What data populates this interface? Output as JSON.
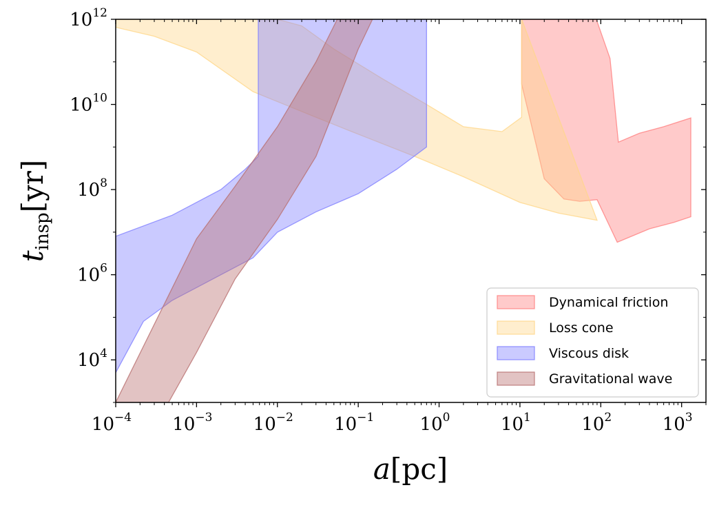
{
  "chart_data": {
    "type": "area",
    "title": "",
    "xlabel": {
      "var": "a",
      "unit": "pc"
    },
    "ylabel": {
      "var": "t",
      "sub": "insp",
      "unit": "yr"
    },
    "xscale": "log",
    "yscale": "log",
    "xlim": [
      0.0001,
      2000
    ],
    "ylim": [
      1000,
      1000000000000
    ],
    "x_ticks": [
      {
        "base": "10",
        "exp": "−4"
      },
      {
        "base": "10",
        "exp": "−3"
      },
      {
        "base": "10",
        "exp": "−2"
      },
      {
        "base": "10",
        "exp": "−1"
      },
      {
        "base": "10",
        "exp": "0"
      },
      {
        "base": "10",
        "exp": "1"
      },
      {
        "base": "10",
        "exp": "2"
      },
      {
        "base": "10",
        "exp": "3"
      }
    ],
    "y_ticks": [
      {
        "base": "10",
        "exp": "4"
      },
      {
        "base": "10",
        "exp": "6"
      },
      {
        "base": "10",
        "exp": "8"
      },
      {
        "base": "10",
        "exp": "10"
      },
      {
        "base": "10",
        "exp": "12"
      }
    ],
    "grid": false,
    "legend_position": "bottom-right",
    "series": [
      {
        "name": "Dynamical friction",
        "color": "#ff8080",
        "upper": [
          [
            10.5,
            1000000000000.0
          ],
          [
            88,
            1000000000000.0
          ],
          [
            130,
            120000000000.0
          ],
          [
            165,
            1300000000.0
          ],
          [
            300,
            2100000000.0
          ],
          [
            600,
            3000000000.0
          ],
          [
            1300,
            4800000000.0
          ]
        ],
        "lower": [
          [
            10.5,
            30000000000.0
          ],
          [
            20,
            180000000.0
          ],
          [
            35,
            60000000.0
          ],
          [
            55,
            53000000.0
          ],
          [
            90,
            58000000.0
          ],
          [
            160,
            5800000.0
          ],
          [
            400,
            12000000.0
          ],
          [
            800,
            17000000.0
          ],
          [
            1300,
            23000000.0
          ]
        ]
      },
      {
        "name": "Loss cone",
        "color": "#ffd78a",
        "upper": [
          [
            0.0001,
            1000000000000.0
          ],
          [
            0.0005,
            1000000000000.0
          ],
          [
            0.01,
            1000000000000.0
          ],
          [
            0.02,
            700000000000.0
          ],
          [
            0.05,
            200000000000.0
          ],
          [
            0.2,
            40000000000.0
          ],
          [
            0.7,
            10000000000.0
          ],
          [
            2,
            3000000000.0
          ],
          [
            6,
            2300000000.0
          ],
          [
            10.5,
            5000000000.0
          ],
          [
            10.5,
            1000000000000.0
          ]
        ],
        "lower": [
          [
            0.0001,
            650000000000.0
          ],
          [
            0.0003,
            400000000000.0
          ],
          [
            0.001,
            170000000000.0
          ],
          [
            0.005,
            20000000000.0
          ],
          [
            0.03,
            5000000000.0
          ],
          [
            0.1,
            2000000000.0
          ],
          [
            0.5,
            600000000.0
          ],
          [
            2,
            200000000.0
          ],
          [
            10,
            50000000.0
          ],
          [
            30,
            28000000.0
          ],
          [
            90,
            19000000.0
          ]
        ]
      },
      {
        "name": "Viscous disk",
        "color": "#8080ff",
        "upper": [
          [
            0.0001,
            8000000.0
          ],
          [
            0.0005,
            25000000.0
          ],
          [
            0.001,
            50000000.0
          ],
          [
            0.002,
            100000000.0
          ],
          [
            0.004,
            300000000.0
          ],
          [
            0.0058,
            600000000.0
          ],
          [
            0.0058,
            1000000000000.0
          ],
          [
            0.7,
            1000000000000.0
          ],
          [
            0.7,
            1000000000.0
          ]
        ],
        "lower": [
          [
            0.0001,
            5000.0
          ],
          [
            0.00022,
            80000.0
          ],
          [
            0.0005,
            250000.0
          ],
          [
            0.001,
            500000.0
          ],
          [
            0.002,
            1000000.0
          ],
          [
            0.005,
            2500000.0
          ],
          [
            0.01,
            10000000.0
          ],
          [
            0.03,
            30000000.0
          ],
          [
            0.1,
            80000000.0
          ],
          [
            0.3,
            300000000.0
          ],
          [
            0.7,
            1000000000.0
          ]
        ]
      },
      {
        "name": "Gravitational wave",
        "color": "#b97070",
        "upper": [
          [
            0.0001,
            1000.0
          ],
          [
            0.001,
            7000000.0
          ],
          [
            0.003,
            120000000.0
          ],
          [
            0.01,
            3000000000.0
          ],
          [
            0.03,
            100000000000.0
          ],
          [
            0.055,
            1000000000000.0
          ],
          [
            0.15,
            1000000000000.0
          ]
        ],
        "lower": [
          [
            0.00045,
            1000.0
          ],
          [
            0.001,
            15000.0
          ],
          [
            0.003,
            800000.0
          ],
          [
            0.01,
            20000000.0
          ],
          [
            0.03,
            600000000.0
          ],
          [
            0.1,
            200000000000.0
          ],
          [
            0.15,
            1000000000000.0
          ]
        ]
      }
    ]
  }
}
